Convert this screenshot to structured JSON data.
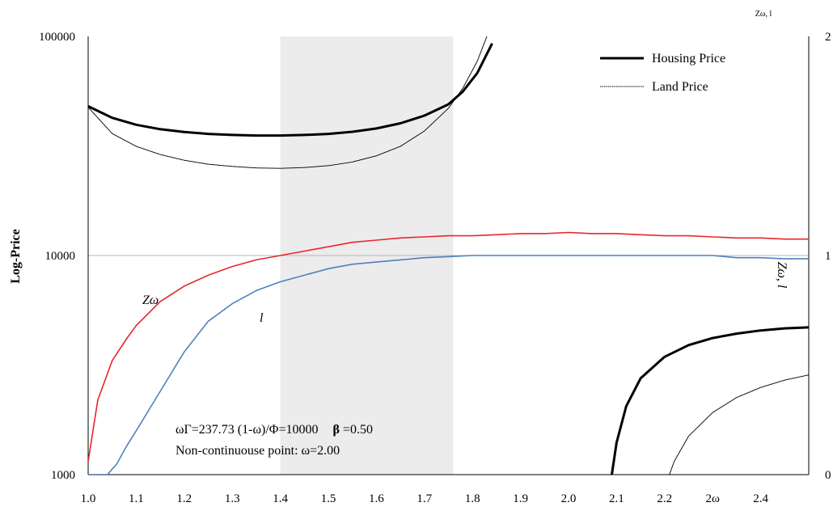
{
  "chart_data": {
    "type": "line",
    "title": "",
    "xlabel": "",
    "ylabel": "Log-Price",
    "y2label": "Zω, l",
    "y2label_rotated": "Zω, l",
    "yscale": "log",
    "ylim": [
      1000,
      100000
    ],
    "y2lim": [
      0,
      2
    ],
    "xlim": [
      1.0,
      2.5
    ],
    "x_ticks": [
      "1.0",
      "1.1",
      "1.2",
      "1.3",
      "1.4",
      "1.5",
      "1.6",
      "1.7",
      "1.8",
      "1.9",
      "2.0",
      "2.1",
      "2.2",
      "2ω",
      "2.4"
    ],
    "y_ticks": [
      "1000",
      "10000",
      "100000"
    ],
    "y2_ticks": [
      "0",
      "1",
      "2"
    ],
    "shaded_region": [
      1.4,
      1.76
    ],
    "reference_line_y": 10000,
    "legend_position": "top-right",
    "series": [
      {
        "name": "Housing Price",
        "color": "#000000",
        "style": "thick",
        "axis": "left",
        "segments": [
          {
            "x": [
              1.0,
              1.05,
              1.1,
              1.15,
              1.2,
              1.25,
              1.3,
              1.35,
              1.4,
              1.45,
              1.5,
              1.55,
              1.6,
              1.65,
              1.7,
              1.75,
              1.78,
              1.81,
              1.84
            ],
            "y": [
              48000,
              42500,
              39500,
              37700,
              36600,
              35900,
              35500,
              35300,
              35300,
              35500,
              35900,
              36700,
              38000,
              40100,
              43500,
              49000,
              56000,
              68000,
              92000
            ]
          },
          {
            "x": [
              2.09,
              2.1,
              2.12,
              2.15,
              2.2,
              2.25,
              2.3,
              2.35,
              2.4,
              2.45,
              2.5
            ],
            "y": [
              1000,
              1400,
              2050,
              2750,
              3450,
              3900,
              4200,
              4400,
              4550,
              4650,
              4700
            ]
          }
        ]
      },
      {
        "name": "Land Price",
        "color": "#000000",
        "style": "thin",
        "axis": "left",
        "segments": [
          {
            "x": [
              1.0,
              1.05,
              1.1,
              1.15,
              1.2,
              1.25,
              1.3,
              1.35,
              1.4,
              1.45,
              1.5,
              1.55,
              1.6,
              1.65,
              1.7,
              1.75,
              1.78,
              1.81,
              1.83
            ],
            "y": [
              47500,
              36000,
              31500,
              28900,
              27200,
              26100,
              25500,
              25100,
              25000,
              25200,
              25700,
              26700,
              28500,
              31500,
              37000,
              47000,
              58000,
              77000,
              100000
            ]
          },
          {
            "x": [
              2.21,
              2.22,
              2.25,
              2.3,
              2.35,
              2.4,
              2.45,
              2.5
            ],
            "y": [
              1000,
              1150,
              1500,
              1920,
              2250,
              2500,
              2700,
              2850
            ]
          }
        ]
      },
      {
        "name": "Zω",
        "label": "Zω",
        "color": "#e8262b",
        "axis": "right",
        "x": [
          1.0,
          1.02,
          1.05,
          1.08,
          1.1,
          1.15,
          1.2,
          1.25,
          1.3,
          1.35,
          1.4,
          1.45,
          1.5,
          1.55,
          1.6,
          1.65,
          1.7,
          1.75,
          1.8,
          1.85,
          1.9,
          1.95,
          2.0,
          2.05,
          2.1,
          2.15,
          2.2,
          2.25,
          2.3,
          2.35,
          2.4,
          2.45,
          2.5
        ],
        "values": [
          0.06,
          0.34,
          0.52,
          0.62,
          0.68,
          0.79,
          0.86,
          0.91,
          0.95,
          0.98,
          1.0,
          1.02,
          1.04,
          1.06,
          1.07,
          1.08,
          1.085,
          1.09,
          1.09,
          1.095,
          1.1,
          1.1,
          1.105,
          1.1,
          1.1,
          1.095,
          1.09,
          1.09,
          1.085,
          1.08,
          1.08,
          1.075,
          1.075
        ]
      },
      {
        "name": "l",
        "label": "l",
        "color": "#4f81bd",
        "axis": "right",
        "x": [
          1.0,
          1.04,
          1.06,
          1.08,
          1.1,
          1.15,
          1.2,
          1.25,
          1.3,
          1.35,
          1.4,
          1.45,
          1.5,
          1.55,
          1.6,
          1.65,
          1.7,
          1.75,
          1.8,
          1.85,
          1.9,
          1.95,
          2.0,
          2.1,
          2.2,
          2.3,
          2.35,
          2.4,
          2.45,
          2.5
        ],
        "values": [
          0.0,
          0.0,
          0.05,
          0.13,
          0.2,
          0.38,
          0.56,
          0.7,
          0.78,
          0.84,
          0.88,
          0.91,
          0.94,
          0.96,
          0.97,
          0.98,
          0.99,
          0.995,
          1.0,
          1.0,
          1.0,
          1.0,
          1.0,
          1.0,
          1.0,
          1.0,
          0.99,
          0.99,
          0.985,
          0.985
        ]
      }
    ],
    "annotations": [
      "ωΓ=237.73  (1-ω)/Φ=10000",
      "β",
      "=0.50",
      "Non-continuouse point: ω=2.00"
    ]
  }
}
